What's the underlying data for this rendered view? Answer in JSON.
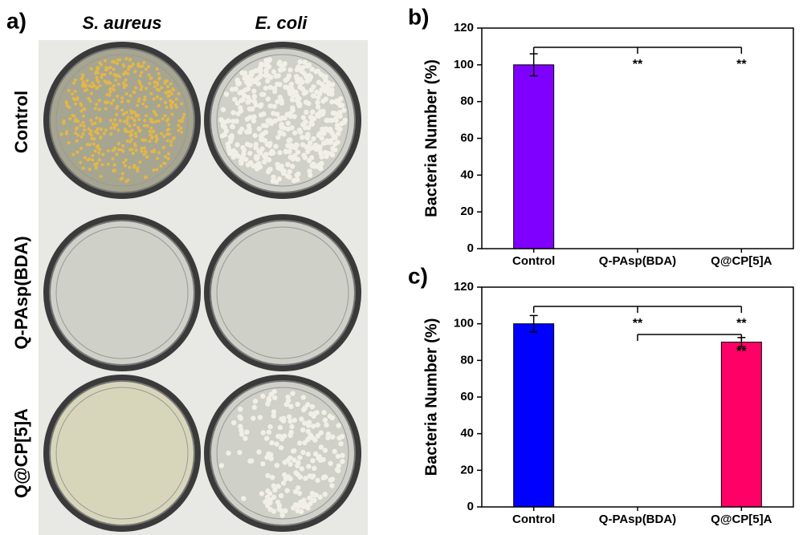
{
  "panel_a": {
    "label": "a)",
    "columns": [
      "S. aureus",
      "E. coli"
    ],
    "rows": [
      "Control",
      "Q-PAsp(BDA)",
      "Q@CP[5]A"
    ]
  },
  "chart_data": [
    {
      "type": "bar",
      "panel_label": "b)",
      "ylabel": "Bacteria Number (%)",
      "categories": [
        "Control",
        "Q-PAsp(BDA)",
        "Q@CP[5]A"
      ],
      "values": [
        100,
        0,
        0
      ],
      "errors": [
        6,
        null,
        null
      ],
      "colors": [
        "#8000ff",
        null,
        null
      ],
      "ylim": [
        0,
        120
      ],
      "yticks": [
        0,
        20,
        40,
        60,
        80,
        100,
        120
      ],
      "comparisons": [
        {
          "marks": [
            null,
            "**",
            "**"
          ]
        }
      ]
    },
    {
      "type": "bar",
      "panel_label": "c)",
      "ylabel": "Bacteria Number (%)",
      "categories": [
        "Control",
        "Q-PAsp(BDA)",
        "Q@CP[5]A"
      ],
      "values": [
        100,
        0,
        90
      ],
      "errors": [
        4.5,
        null,
        2.5
      ],
      "colors": [
        "#0000ff",
        null,
        "#ff0066"
      ],
      "ylim": [
        0,
        120
      ],
      "yticks": [
        0,
        20,
        40,
        60,
        80,
        100,
        120
      ],
      "comparisons": [
        {
          "marks": [
            null,
            "**",
            "**"
          ]
        },
        {
          "marks": [
            null,
            null,
            "**"
          ]
        }
      ]
    }
  ]
}
